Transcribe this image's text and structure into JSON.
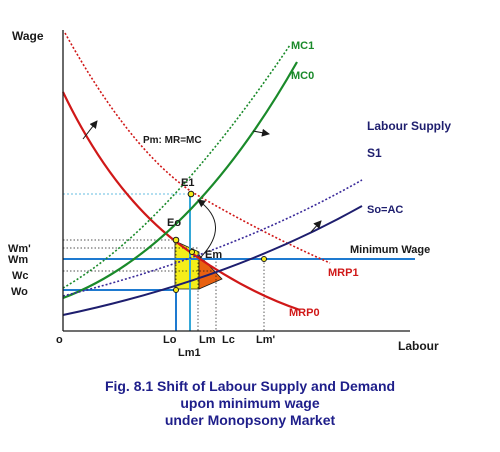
{
  "axes": {
    "y_label": "Wage",
    "x_label": "Labour",
    "origin_label": "o"
  },
  "wage_ticks": {
    "wm_prime": "Wm'",
    "wm": "Wm",
    "wc": "Wc",
    "wo": "Wo"
  },
  "labour_ticks": {
    "lo": "Lo",
    "lm": "Lm",
    "lc": "Lc",
    "lm_prime": "Lm'",
    "lm1": "Lm1"
  },
  "curves": {
    "mc1": "MC1",
    "mc0": "MC0",
    "labour_supply": "Labour Supply",
    "s1": "S1",
    "so_ac": "So=AC",
    "minimum_wage": "Minimum Wage",
    "mrp1": "MRP1",
    "mrp0": "MRP0",
    "pm_rule": "Pm: MR=MC"
  },
  "points": {
    "e1": "E1",
    "eo": "Eo",
    "em": "Em"
  },
  "caption": {
    "line1": "Fig. 8.1 Shift of Labour Supply and Demand",
    "line2": "upon minimum wage",
    "line3": "under Monopsony Market"
  },
  "colors": {
    "supply_navy": "#1e1e6e",
    "supply_dotted": "#3a2a9a",
    "mc_green": "#1a8a2a",
    "mrp_red": "#d01818",
    "min_wage_blue": "#1e7ad0",
    "guide_cyan": "#35a8d8",
    "shade_yellow": "#f5ee1a",
    "shade_orange": "#e86010",
    "caption_blue": "#1e1e8a"
  }
}
